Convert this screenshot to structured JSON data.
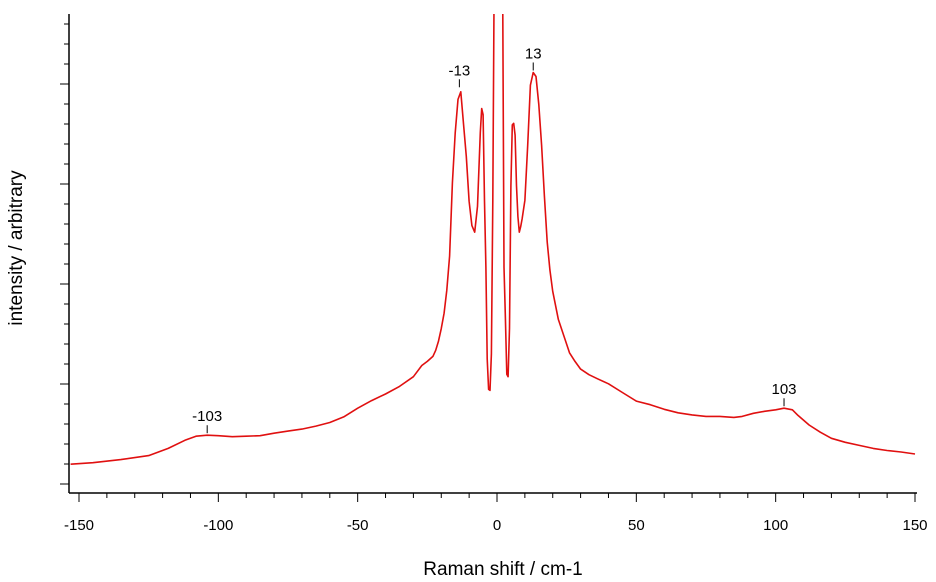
{
  "chart_data": {
    "type": "line",
    "xlabel": "Raman shift / cm-1",
    "ylabel": "intensity / arbitrary",
    "xlim": [
      -153,
      150
    ],
    "ylim": [
      0,
      100
    ],
    "x_ticks": [
      -150,
      -100,
      -50,
      0,
      50,
      100,
      150
    ],
    "x_tick_labels": [
      "-150",
      "-100",
      "-50",
      "0",
      "50",
      "100",
      "150"
    ],
    "y_tick_labels_shown": false,
    "grid": false,
    "legend": "none",
    "series": [
      {
        "color": "#e01010",
        "points": [
          [
            -153,
            3.3
          ],
          [
            -145,
            3.6
          ],
          [
            -135,
            4.2
          ],
          [
            -125,
            5.0
          ],
          [
            -118,
            6.4
          ],
          [
            -112,
            8.0
          ],
          [
            -108,
            8.8
          ],
          [
            -104,
            9.0
          ],
          [
            -100,
            8.9
          ],
          [
            -95,
            8.7
          ],
          [
            -90,
            8.8
          ],
          [
            -85,
            8.9
          ],
          [
            -80,
            9.4
          ],
          [
            -75,
            9.8
          ],
          [
            -70,
            10.2
          ],
          [
            -65,
            10.8
          ],
          [
            -60,
            11.5
          ],
          [
            -55,
            12.6
          ],
          [
            -50,
            14.3
          ],
          [
            -45,
            15.8
          ],
          [
            -40,
            17.1
          ],
          [
            -35,
            18.6
          ],
          [
            -30,
            20.5
          ],
          [
            -27,
            22.7
          ],
          [
            -25,
            23.5
          ],
          [
            -23,
            24.5
          ],
          [
            -22,
            25.7
          ],
          [
            -21,
            27.5
          ],
          [
            -20,
            30.0
          ],
          [
            -19,
            33.0
          ],
          [
            -18,
            37.5
          ],
          [
            -17,
            44.2
          ],
          [
            -16,
            58.6
          ],
          [
            -15,
            68.4
          ],
          [
            -14,
            75.0
          ],
          [
            -13,
            76.5
          ],
          [
            -12,
            70.0
          ],
          [
            -11,
            63.8
          ],
          [
            -10,
            55.0
          ],
          [
            -9,
            50.2
          ],
          [
            -8,
            48.9
          ],
          [
            -7,
            54.0
          ],
          [
            -6,
            68.5
          ],
          [
            -5.5,
            73.2
          ],
          [
            -5,
            72.0
          ],
          [
            -4.5,
            55.0
          ],
          [
            -4,
            42.0
          ],
          [
            -3.5,
            24.0
          ],
          [
            -3,
            18.0
          ],
          [
            -2.5,
            17.8
          ],
          [
            -2,
            25.0
          ],
          [
            -1.5,
            55.0
          ],
          [
            -1,
            100
          ],
          [
            2,
            100
          ],
          [
            2.5,
            42.0
          ],
          [
            3,
            32.0
          ],
          [
            3.5,
            21.0
          ],
          [
            4,
            20.5
          ],
          [
            4.5,
            30.0
          ],
          [
            5,
            58.0
          ],
          [
            5.5,
            70.0
          ],
          [
            6,
            70.3
          ],
          [
            6.5,
            68.0
          ],
          [
            7,
            58.0
          ],
          [
            7.5,
            52.0
          ],
          [
            8,
            48.9
          ],
          [
            8.5,
            50.0
          ],
          [
            9,
            51.5
          ],
          [
            10,
            55.2
          ],
          [
            11,
            66.0
          ],
          [
            12,
            77.8
          ],
          [
            13,
            80.3
          ],
          [
            14,
            79.5
          ],
          [
            15,
            74.0
          ],
          [
            16,
            66.0
          ],
          [
            17,
            56.0
          ],
          [
            18,
            47.0
          ],
          [
            19,
            41.5
          ],
          [
            20,
            37.3
          ],
          [
            22,
            31.8
          ],
          [
            24,
            28.5
          ],
          [
            26,
            25.2
          ],
          [
            28,
            23.5
          ],
          [
            30,
            22.0
          ],
          [
            33,
            20.9
          ],
          [
            36,
            20.1
          ],
          [
            40,
            19.1
          ],
          [
            45,
            17.4
          ],
          [
            50,
            15.7
          ],
          [
            55,
            15.0
          ],
          [
            60,
            14.1
          ],
          [
            65,
            13.4
          ],
          [
            70,
            13.0
          ],
          [
            75,
            12.7
          ],
          [
            80,
            12.7
          ],
          [
            85,
            12.5
          ],
          [
            88,
            12.7
          ],
          [
            92,
            13.3
          ],
          [
            96,
            13.7
          ],
          [
            100,
            14.0
          ],
          [
            103,
            14.3
          ],
          [
            106,
            14.0
          ],
          [
            108,
            12.9
          ],
          [
            112,
            11.0
          ],
          [
            116,
            9.6
          ],
          [
            120,
            8.4
          ],
          [
            125,
            7.6
          ],
          [
            130,
            7.0
          ],
          [
            135,
            6.4
          ],
          [
            140,
            6.0
          ],
          [
            145,
            5.7
          ],
          [
            150,
            5.3
          ]
        ]
      }
    ],
    "annotations": [
      {
        "text": "-103",
        "x": -104,
        "y": 9.0
      },
      {
        "text": "-13",
        "x": -13.5,
        "y": 77.0
      },
      {
        "text": "13",
        "x": 13,
        "y": 80.3
      },
      {
        "text": "103",
        "x": 103,
        "y": 14.3
      }
    ]
  }
}
